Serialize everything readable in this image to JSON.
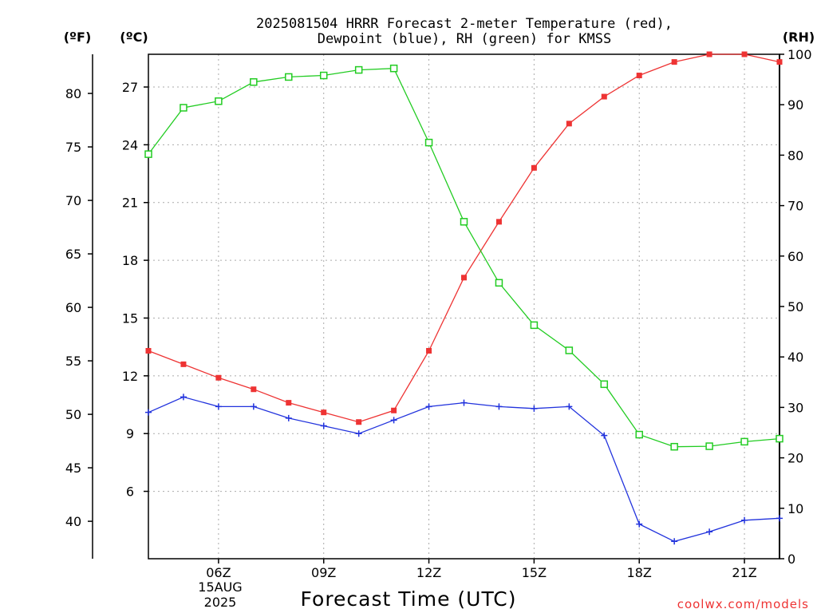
{
  "header": {
    "title_line1": "2025081504 HRRR Forecast 2-meter Temperature (red),",
    "title_line2": "Dewpoint (blue), RH (green) for KMSS"
  },
  "axes": {
    "left_outer_unit": "(ºF)",
    "left_inner_unit": "(ºC)",
    "right_unit": "(RH)",
    "xlabel": "Forecast Time (UTC)",
    "date_line1": "15AUG",
    "date_line2": "2025"
  },
  "credit": "coolwx.com/models",
  "chart_data": {
    "type": "line",
    "title": "2025081504 HRRR Forecast 2-meter Temperature (red), Dewpoint (blue), RH (green) for KMSS",
    "xlabel": "Forecast Time (UTC)",
    "x_hours_utc": [
      4,
      5,
      6,
      7,
      8,
      9,
      10,
      11,
      12,
      13,
      14,
      15,
      16,
      17,
      18,
      19,
      20,
      21,
      22
    ],
    "xlim": [
      4,
      22
    ],
    "x_ticks": [
      {
        "hour": 6,
        "label": "06Z"
      },
      {
        "hour": 9,
        "label": "09Z"
      },
      {
        "hour": 12,
        "label": "12Z"
      },
      {
        "hour": 15,
        "label": "15Z"
      },
      {
        "hour": 18,
        "label": "18Z"
      },
      {
        "hour": 21,
        "label": "21Z"
      }
    ],
    "y_celsius": {
      "lim": [
        2.5,
        28.7
      ],
      "ticks": [
        6,
        9,
        12,
        15,
        18,
        21,
        24,
        27
      ]
    },
    "y_fahrenheit": {
      "ticks": [
        40,
        45,
        50,
        55,
        60,
        65,
        70,
        75,
        80
      ]
    },
    "y_rh": {
      "lim": [
        0,
        100
      ],
      "ticks": [
        0,
        10,
        20,
        30,
        40,
        50,
        60,
        70,
        80,
        90,
        100
      ]
    },
    "grid": true,
    "series": [
      {
        "name": "Temperature",
        "axis": "celsius",
        "color": "#ee3333",
        "marker": "filled-square",
        "values": [
          13.3,
          12.6,
          11.9,
          11.3,
          10.6,
          10.1,
          9.6,
          10.2,
          13.3,
          17.1,
          20.0,
          22.8,
          25.1,
          26.5,
          27.6,
          28.3,
          28.7,
          28.7,
          28.3
        ]
      },
      {
        "name": "Dewpoint",
        "axis": "celsius",
        "color": "#2233dd",
        "marker": "plus",
        "values": [
          10.1,
          10.9,
          10.4,
          10.4,
          9.8,
          9.4,
          9.0,
          9.7,
          10.4,
          10.6,
          10.4,
          10.3,
          10.4,
          8.9,
          4.3,
          3.4,
          3.9,
          4.5,
          4.6
        ]
      },
      {
        "name": "RH",
        "axis": "rh",
        "color": "#22cc22",
        "marker": "open-square",
        "values": [
          80.2,
          89.4,
          90.7,
          94.5,
          95.5,
          95.8,
          96.9,
          97.2,
          82.5,
          66.8,
          54.7,
          46.3,
          41.3,
          34.6,
          24.6,
          22.2,
          22.3,
          23.2,
          23.8
        ]
      }
    ]
  }
}
